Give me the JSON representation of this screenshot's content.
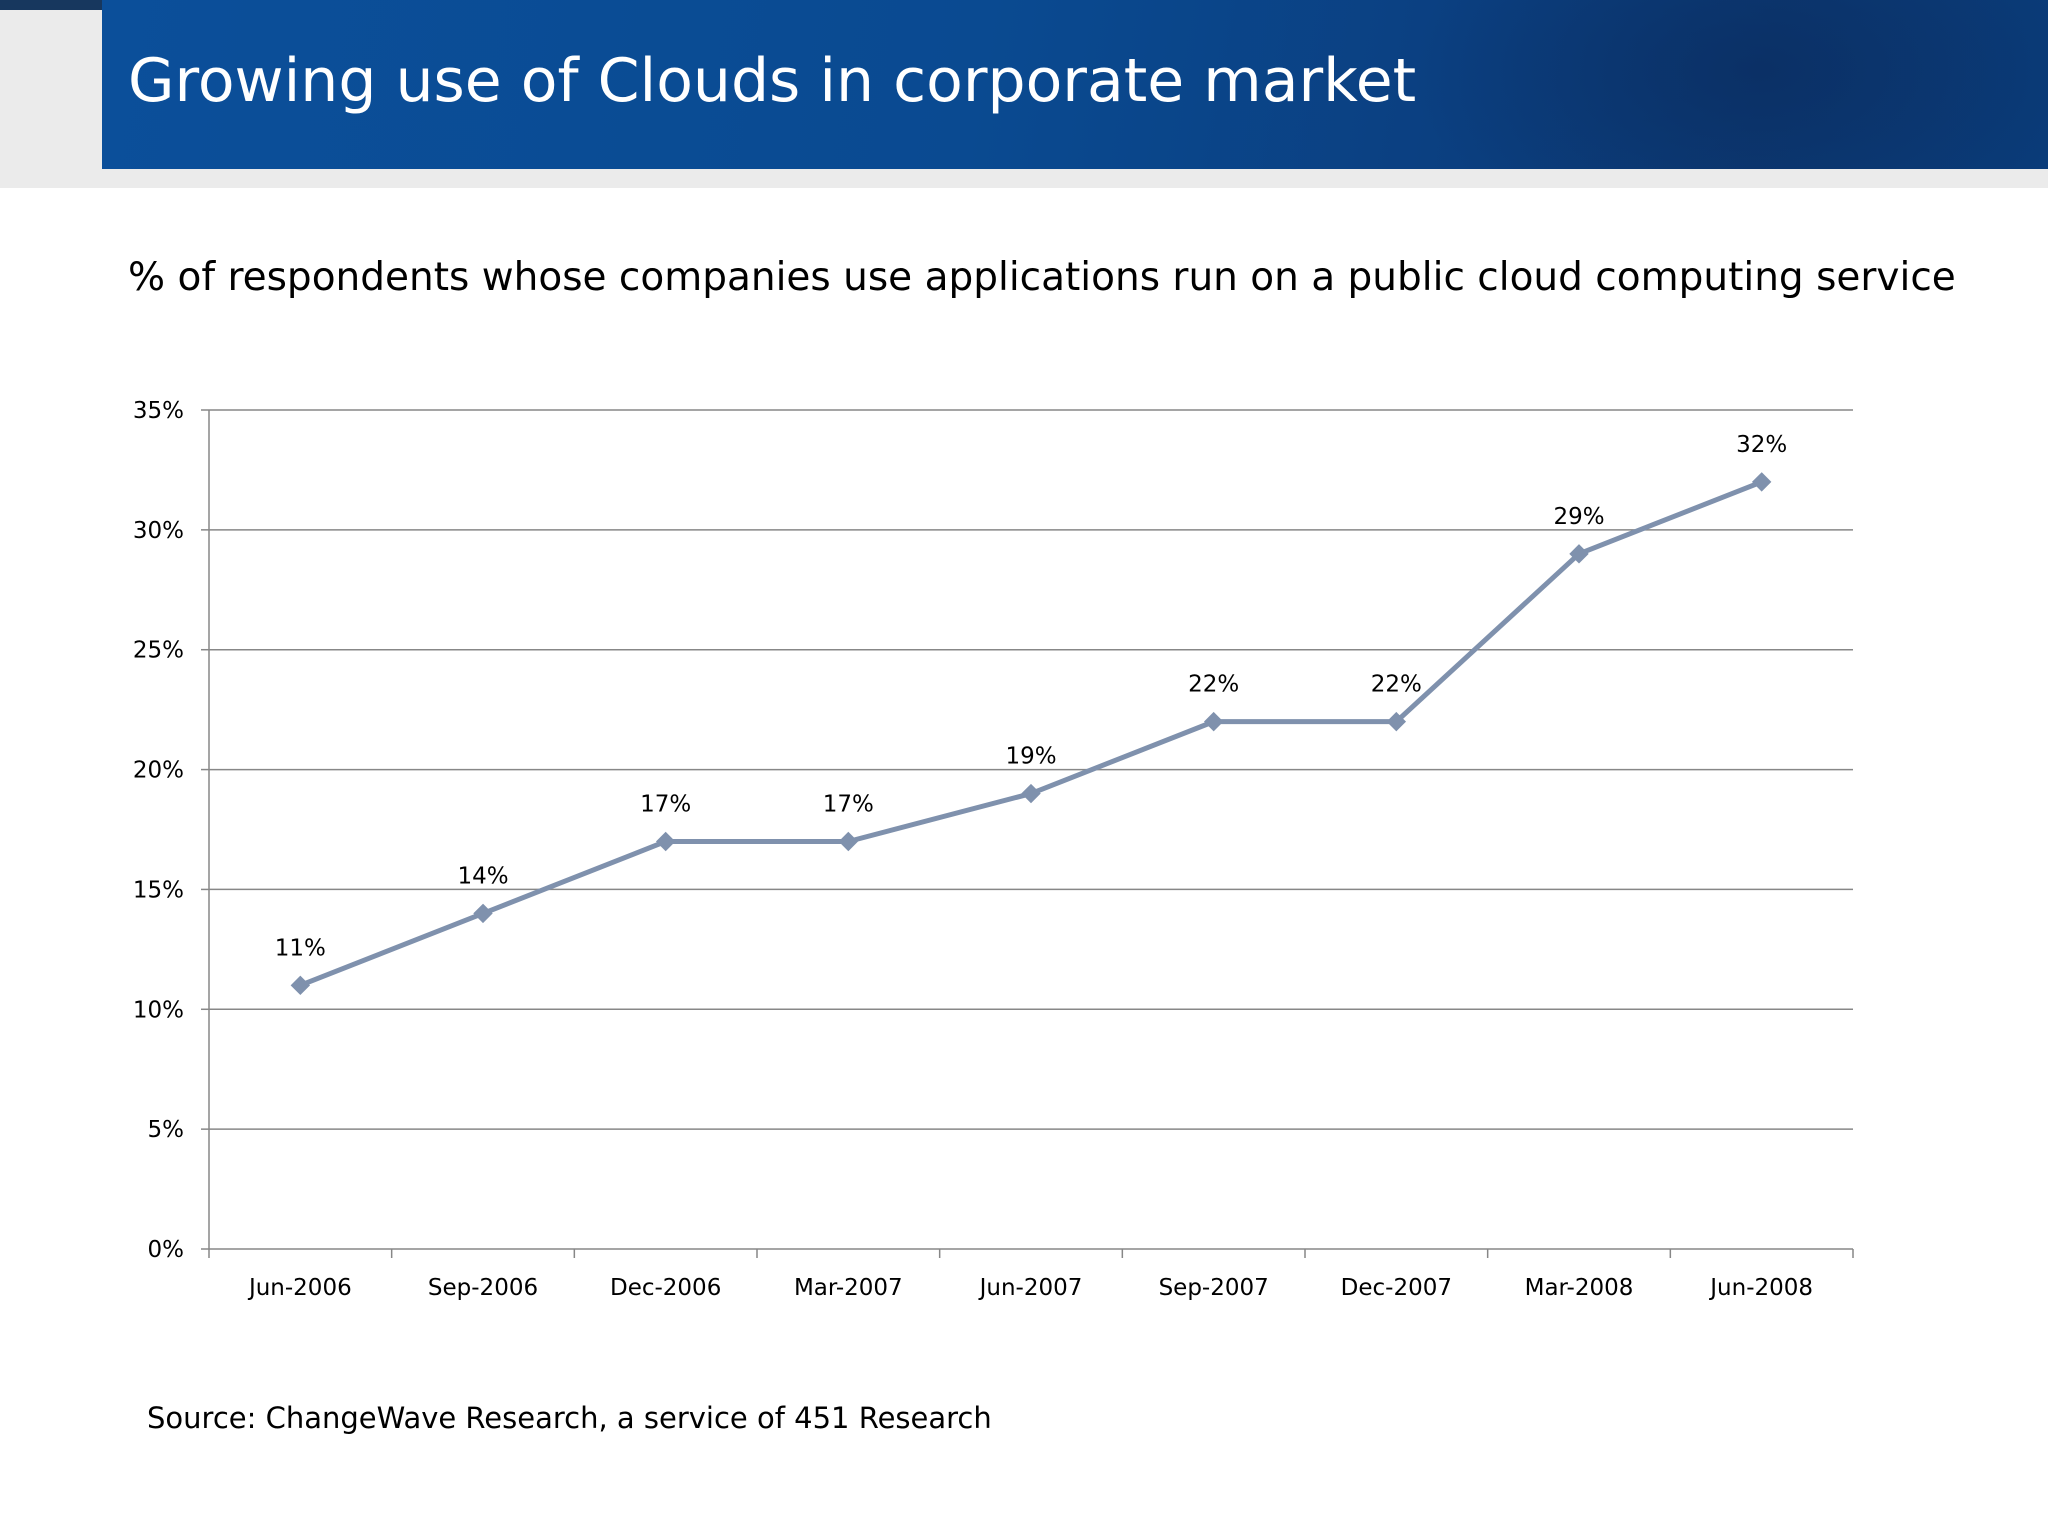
{
  "slide": {
    "title": "Growing use of Clouds in corporate market",
    "source": "Source: ChangeWave Research, a service of 451 Research",
    "colors": {
      "title_bar": "#0b4f9a",
      "series_line": "#7f91ad",
      "gridline": "#878787"
    }
  },
  "chart_data": {
    "type": "line",
    "title": "% of respondents whose companies use applications run on a public cloud computing service",
    "xlabel": "",
    "ylabel": "",
    "categories": [
      "Jun-2006",
      "Sep-2006",
      "Dec-2006",
      "Mar-2007",
      "Jun-2007",
      "Sep-2007",
      "Dec-2007",
      "Mar-2008",
      "Jun-2008"
    ],
    "series": [
      {
        "values": [
          11,
          14,
          17,
          17,
          19,
          22,
          22,
          29,
          32
        ],
        "data_labels": [
          "11%",
          "14%",
          "17%",
          "17%",
          "19%",
          "22%",
          "22%",
          "29%",
          "32%"
        ],
        "marker": "diamond",
        "color": "#7f91ad"
      }
    ],
    "ylim": [
      0,
      35
    ],
    "y_ticks": [
      0,
      5,
      10,
      15,
      20,
      25,
      30,
      35
    ],
    "y_tick_labels": [
      "0%",
      "5%",
      "10%",
      "15%",
      "20%",
      "25%",
      "30%",
      "35%"
    ],
    "grid": true,
    "legend": "none"
  }
}
